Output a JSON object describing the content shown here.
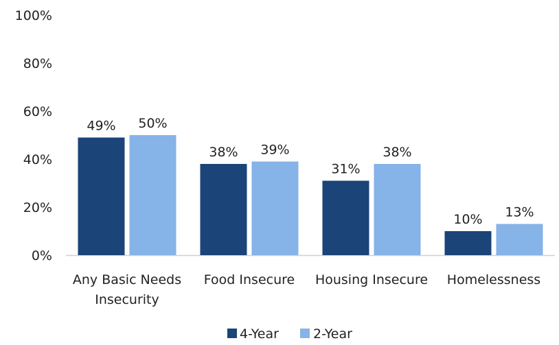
{
  "chart_data": {
    "type": "bar",
    "categories": [
      [
        "Any Basic Needs",
        "Insecurity"
      ],
      [
        "Food Insecure"
      ],
      [
        "Housing Insecure"
      ],
      [
        "Homelessness"
      ]
    ],
    "series": [
      {
        "name": "4-Year",
        "values": [
          49,
          38,
          31,
          10
        ],
        "labels": [
          "49%",
          "38%",
          "31%",
          "10%"
        ],
        "color": "#1b4478"
      },
      {
        "name": "2-Year",
        "values": [
          50,
          39,
          38,
          13
        ],
        "labels": [
          "50%",
          "39%",
          "38%",
          "13%"
        ],
        "color": "#86b3e8"
      }
    ],
    "ylim": [
      0,
      100
    ],
    "yticks": [
      0,
      20,
      40,
      60,
      80,
      100
    ],
    "ytick_labels": [
      "0%",
      "20%",
      "40%",
      "60%",
      "80%",
      "100%"
    ],
    "grid": false,
    "legend_position": "bottom-center"
  }
}
